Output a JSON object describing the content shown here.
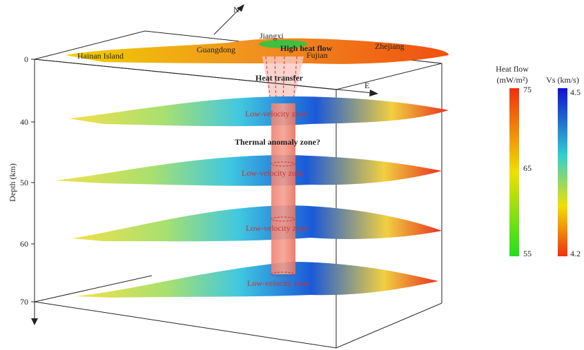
{
  "depth_axis": {
    "label": "Depth (km)",
    "ticks": [
      0,
      40,
      50,
      60,
      70
    ]
  },
  "directions": {
    "north": "N",
    "east": "E"
  },
  "map_labels": {
    "hainan": "Hainan Island",
    "guangdong": "Guangdong",
    "jiangxi": "Jiangxi",
    "high_heat_flow": "High heat flow",
    "fujian": "Fujian",
    "zhejiang": "Zhejiang"
  },
  "annotations": {
    "heat_transfer": "Heat transfer",
    "thermal_anomaly": "Thermal anomaly zone?",
    "low_velocity": [
      "Low-velocity zone",
      "Low-velocity zone",
      "Low-velocity zone",
      "Low-velocity zone"
    ]
  },
  "heat_flow_bar": {
    "title": "Heat flow",
    "unit": "(mW/m²)",
    "ticks": [
      75,
      65,
      55
    ]
  },
  "vs_bar": {
    "title": "Vs (km/s)",
    "ticks": [
      4.5,
      4.2
    ]
  }
}
